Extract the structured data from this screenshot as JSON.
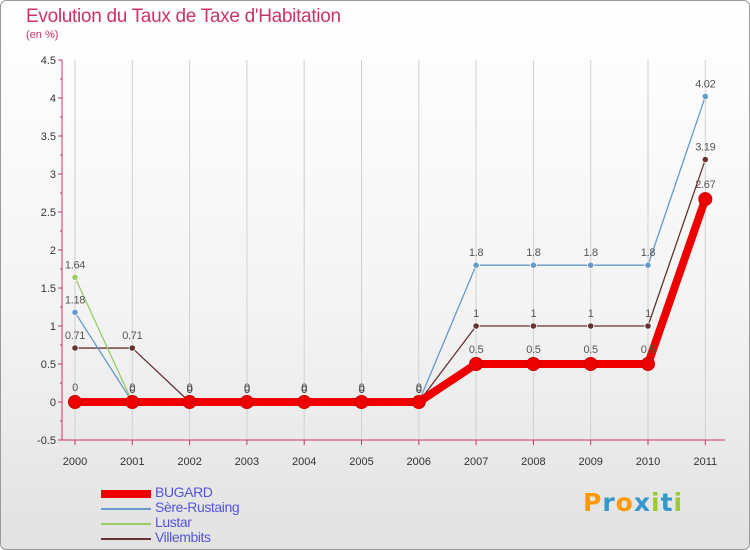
{
  "colors": {
    "title": "#cc3366",
    "axis": "#cc3366",
    "tick_label": "#333333",
    "grid": "#d0d0d0",
    "value_label": "#555555",
    "legend_text": "#5555dd"
  },
  "chart_data": {
    "type": "line",
    "title": "Evolution du Taux de Taxe d'Habitation",
    "subtitle": "(en %)",
    "xlabel": "",
    "ylabel": "",
    "grid": true,
    "legend_position": "bottom-left",
    "ylim": [
      -0.5,
      4.5
    ],
    "y_ticks": [
      "-0.5",
      "0",
      "0.5",
      "1",
      "1.5",
      "2",
      "2.5",
      "3",
      "3.5",
      "4",
      "4.5"
    ],
    "categories": [
      "2000",
      "2001",
      "2002",
      "2003",
      "2004",
      "2005",
      "2006",
      "2007",
      "2008",
      "2009",
      "2010",
      "2011"
    ],
    "series": [
      {
        "name": "BUGARD",
        "color": "#ee0000",
        "values": [
          0,
          0,
          0,
          0,
          0,
          0,
          0,
          0.5,
          0.5,
          0.5,
          0.5,
          2.67
        ],
        "labels": [
          "0",
          "0",
          "0",
          "0",
          "0",
          "0",
          "0",
          "0.5",
          "0.5",
          "0.5",
          "0.5",
          "2.67"
        ]
      },
      {
        "name": "Sère-Rustaing",
        "color": "#6699cc",
        "values": [
          1.18,
          0,
          0,
          0,
          0,
          0,
          0,
          1.8,
          1.8,
          1.8,
          1.8,
          4.02
        ],
        "labels": [
          "1.18",
          "0",
          "0",
          "0",
          "0",
          "0",
          "0",
          "1.8",
          "1.8",
          "1.8",
          "1.8",
          "4.02"
        ]
      },
      {
        "name": "Lustar",
        "color": "#99cc66",
        "values": [
          1.64,
          0,
          0,
          0,
          0,
          0,
          0,
          null,
          null,
          null,
          null,
          null
        ],
        "labels": [
          "1.64",
          "0",
          "0",
          "0",
          "0",
          "0",
          "0",
          null,
          null,
          null,
          null,
          null
        ]
      },
      {
        "name": "Villembits",
        "color": "#663333",
        "values": [
          0.71,
          0.71,
          0,
          0,
          0,
          0,
          0,
          1,
          1,
          1,
          1,
          3.19
        ],
        "labels": [
          "0.71",
          "0.71",
          "0",
          "0",
          "0",
          "0",
          "0",
          "1",
          "1",
          "1",
          "1",
          "3.19"
        ]
      }
    ]
  },
  "brand": {
    "letters": [
      "P",
      "r",
      "o",
      "x",
      "i",
      "t",
      "i"
    ],
    "colors": [
      "#ff9900",
      "#3399cc",
      "#ff9900",
      "#3399cc",
      "#99cc33",
      "#3399cc",
      "#99cc33"
    ]
  }
}
